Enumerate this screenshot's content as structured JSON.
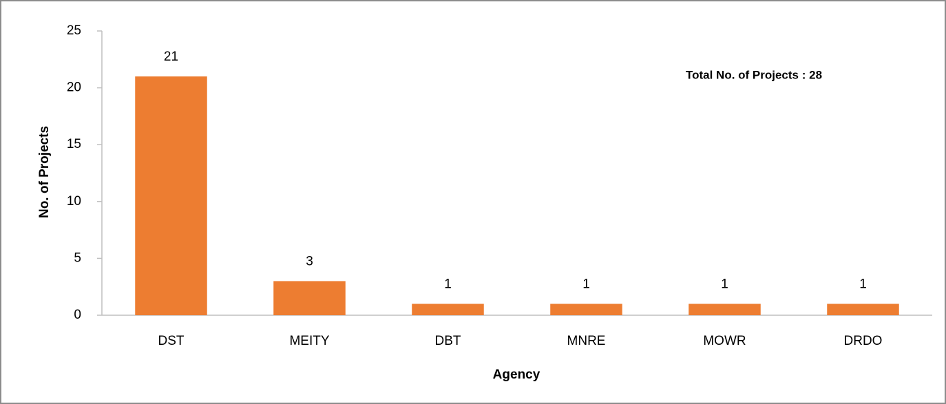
{
  "chart_data": {
    "type": "bar",
    "categories": [
      "DST",
      "MEITY",
      "DBT",
      "MNRE",
      "MOWR",
      "DRDO"
    ],
    "values": [
      21,
      3,
      1,
      1,
      1,
      1
    ],
    "color": "#ed7d31",
    "ylim": [
      0,
      25
    ],
    "yticks": [
      0,
      5,
      10,
      15,
      20,
      25
    ],
    "y_label": "No. of Projects",
    "x_label": "Agency",
    "annotation": "Total No. of Projects : 28",
    "grid": false
  }
}
